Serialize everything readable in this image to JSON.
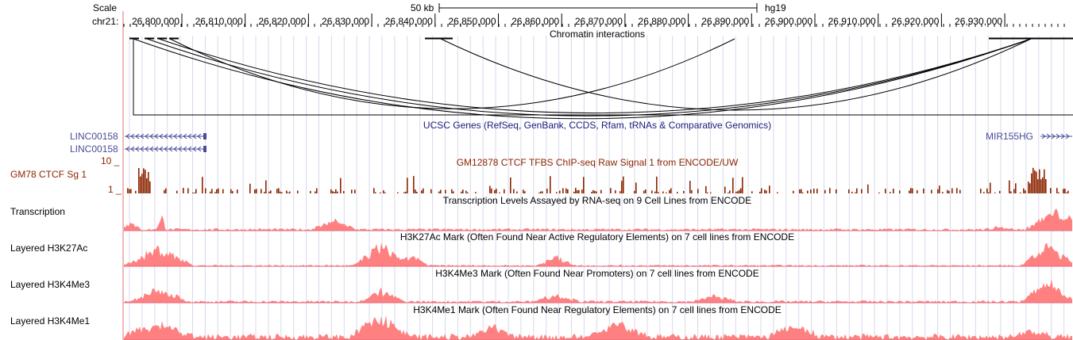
{
  "browser": {
    "scale_label": "Scale",
    "chrom_label": "chr21:",
    "scale_bar_text": "50 kb",
    "assembly": "hg19",
    "coordinates": [
      "26,800,000",
      "26,810,000",
      "26,820,000",
      "26,830,000",
      "26,840,000",
      "26,850,000",
      "26,860,000",
      "26,870,000",
      "26,880,000",
      "26,890,000",
      "26,900,000",
      "26,910,000",
      "26,920,000",
      "26,930,000"
    ]
  },
  "tracks": {
    "chromatin": {
      "title": "Chromatin interactions"
    },
    "genes": {
      "title": "UCSC Genes (RefSeq, GenBank, CCDS, Rfam, tRNAs & Comparative Genomics)",
      "items": [
        "LINC00158",
        "LINC00158",
        "MIR155HG"
      ]
    },
    "ctcf": {
      "label": "GM78 CTCF Sg 1",
      "title": "GM12878 CTCF TFBS ChIP-seq Raw Signal 1 from ENCODE/UW",
      "y_max": "10 _",
      "y_min": "1 _"
    },
    "transcription": {
      "label": "Transcription",
      "title": "Transcription Levels Assayed by RNA-seq on 9 Cell Lines from ENCODE"
    },
    "h3k27ac": {
      "label": "Layered H3K27Ac",
      "title": "H3K27Ac Mark (Often Found Near Active Regulatory Elements) on 7 cell lines from ENCODE"
    },
    "h3k4me3": {
      "label": "Layered H3K4Me3",
      "title": "H3K4Me3 Mark (Often Found Near Promoters) on 7 cell lines from ENCODE"
    },
    "h3k4me1": {
      "label": "Layered H3K4Me1",
      "title": "H3K4Me1 Mark (Often Found Near Regulatory Elements) on 7 cell lines from ENCODE"
    }
  },
  "colors": {
    "ctcf": "#8b2500",
    "histone": "#ff8080",
    "gene": "#4b4b9a",
    "title_blue": "#1a1a7a",
    "grid": "#d8d8ec"
  }
}
